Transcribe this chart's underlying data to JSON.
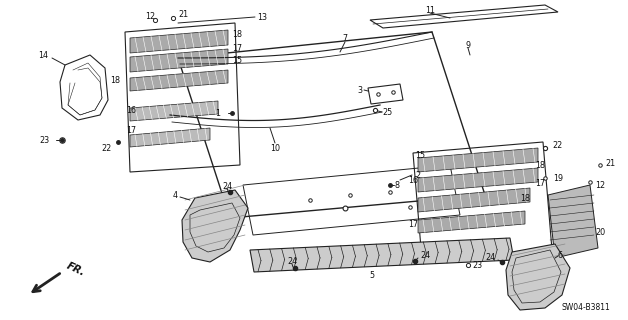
{
  "bg_color": "#ffffff",
  "diagram_code": "SW04-B3811",
  "line_color": "#222222",
  "label_fontsize": 5.8,
  "text_color": "#111111"
}
